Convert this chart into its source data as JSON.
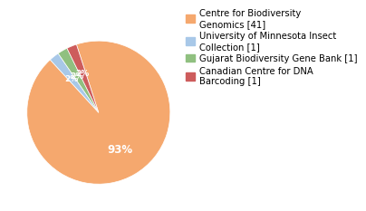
{
  "labels": [
    "Centre for Biodiversity\nGenomics [41]",
    "University of Minnesota Insect\nCollection [1]",
    "Gujarat Biodiversity Gene Bank [1]",
    "Canadian Centre for DNA\nBarcoding [1]"
  ],
  "values": [
    41,
    1,
    1,
    1
  ],
  "colors": [
    "#F5A86E",
    "#A8C8E8",
    "#90C080",
    "#CD5C5C"
  ],
  "background_color": "#ffffff",
  "legend_fontsize": 7.2,
  "startangle": 108
}
